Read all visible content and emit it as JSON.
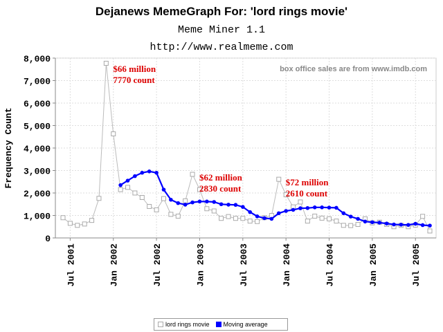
{
  "header": {
    "title": "Dejanews MemeGraph For: 'lord rings movie'",
    "subtitle1": "Meme Miner 1.1",
    "subtitle2": "http://www.realmeme.com"
  },
  "chart_data": {
    "type": "line",
    "ylabel": "Frequency Count",
    "xlabel": "",
    "ylim": [
      0,
      8000
    ],
    "yticks": [
      0,
      1000,
      2000,
      3000,
      4000,
      5000,
      6000,
      7000,
      8000
    ],
    "ytick_labels": [
      "0",
      "1,000",
      "2,000",
      "3,000",
      "4,000",
      "5,000",
      "6,000",
      "7,000",
      "8,000"
    ],
    "xticks": [
      {
        "label": "Jul 2001",
        "x": "2001-07"
      },
      {
        "label": "Jan 2002",
        "x": "2002-01"
      },
      {
        "label": "Jul 2002",
        "x": "2002-07"
      },
      {
        "label": "Jan 2003",
        "x": "2003-01"
      },
      {
        "label": "Jul 2003",
        "x": "2003-07"
      },
      {
        "label": "Jan 2004",
        "x": "2004-01"
      },
      {
        "label": "Jul 2004",
        "x": "2004-07"
      },
      {
        "label": "Jan 2005",
        "x": "2005-01"
      },
      {
        "label": "Jul 2005",
        "x": "2005-07"
      }
    ],
    "grid": true,
    "legend_position": "bottom",
    "series": [
      {
        "name": "lord rings movie",
        "color": "#bbbbbb",
        "marker": "hollow-square",
        "x": [
          "2001-06",
          "2001-07",
          "2001-08",
          "2001-09",
          "2001-10",
          "2001-11",
          "2001-12",
          "2002-01",
          "2002-02",
          "2002-03",
          "2002-04",
          "2002-05",
          "2002-06",
          "2002-07",
          "2002-08",
          "2002-09",
          "2002-10",
          "2002-11",
          "2002-12",
          "2003-01",
          "2003-02",
          "2003-03",
          "2003-04",
          "2003-05",
          "2003-06",
          "2003-07",
          "2003-08",
          "2003-09",
          "2003-10",
          "2003-11",
          "2003-12",
          "2004-01",
          "2004-02",
          "2004-03",
          "2004-04",
          "2004-05",
          "2004-06",
          "2004-07",
          "2004-08",
          "2004-09",
          "2004-10",
          "2004-11",
          "2004-12",
          "2005-01",
          "2005-02",
          "2005-03",
          "2005-04",
          "2005-05",
          "2005-06",
          "2005-07",
          "2005-08",
          "2005-09"
        ],
        "values": [
          900,
          650,
          560,
          620,
          780,
          1760,
          7770,
          4630,
          2150,
          2250,
          2000,
          1800,
          1400,
          1250,
          1750,
          1050,
          970,
          1650,
          2830,
          2150,
          1300,
          1200,
          870,
          950,
          870,
          870,
          750,
          730,
          900,
          1000,
          2610,
          1920,
          1380,
          1600,
          750,
          970,
          880,
          850,
          750,
          560,
          550,
          600,
          850,
          670,
          700,
          600,
          500,
          560,
          500,
          570,
          960,
          310
        ]
      },
      {
        "name": "Moving average",
        "color": "#0000ff",
        "marker": "filled-circle",
        "x": [
          "2002-02",
          "2002-03",
          "2002-04",
          "2002-05",
          "2002-06",
          "2002-07",
          "2002-08",
          "2002-09",
          "2002-10",
          "2002-11",
          "2002-12",
          "2003-01",
          "2003-02",
          "2003-03",
          "2003-04",
          "2003-05",
          "2003-06",
          "2003-07",
          "2003-08",
          "2003-09",
          "2003-10",
          "2003-11",
          "2003-12",
          "2004-01",
          "2004-02",
          "2004-03",
          "2004-04",
          "2004-05",
          "2004-06",
          "2004-07",
          "2004-08",
          "2004-09",
          "2004-10",
          "2004-11",
          "2004-12",
          "2005-01",
          "2005-02",
          "2005-03",
          "2005-04",
          "2005-05",
          "2005-06",
          "2005-07",
          "2005-08",
          "2005-09"
        ],
        "values": [
          2350,
          2550,
          2750,
          2900,
          2960,
          2900,
          2150,
          1700,
          1550,
          1480,
          1580,
          1620,
          1620,
          1600,
          1500,
          1480,
          1470,
          1380,
          1150,
          960,
          880,
          850,
          1100,
          1200,
          1250,
          1320,
          1330,
          1360,
          1360,
          1350,
          1340,
          1100,
          950,
          850,
          730,
          700,
          680,
          640,
          600,
          590,
          580,
          630,
          570,
          550
        ]
      }
    ],
    "annotations": [
      {
        "lines": [
          "$66 million",
          "7770 count"
        ],
        "x": "2001-12",
        "y": 7770,
        "color": "#dd0000"
      },
      {
        "lines": [
          "$62 million",
          "2830 count"
        ],
        "x": "2002-12",
        "y": 2830,
        "color": "#dd0000"
      },
      {
        "lines": [
          "$72 million",
          "2610 count"
        ],
        "x": "2003-12",
        "y": 2610,
        "color": "#dd0000"
      }
    ],
    "note": "box office sales are from www.imdb.com"
  }
}
